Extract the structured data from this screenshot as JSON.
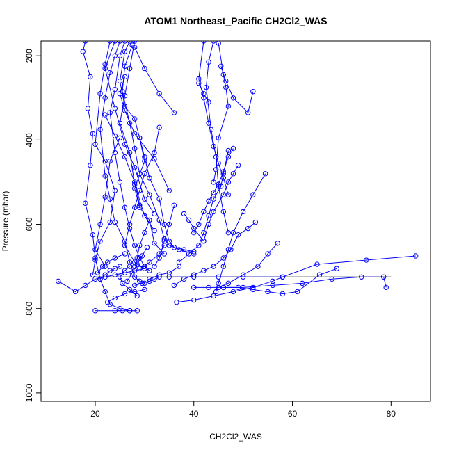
{
  "chart_data": {
    "type": "line",
    "title": "ATOM1 Northeast_Pacific CH2Cl2_WAS",
    "xlabel": "CH2Cl2_WAS",
    "ylabel": "Pressure (mbar)",
    "xlim": [
      9,
      88
    ],
    "ylim": [
      1020,
      165
    ],
    "y_inverted": true,
    "x_ticks": [
      20,
      40,
      60,
      80
    ],
    "y_ticks": [
      200,
      400,
      600,
      800,
      1000
    ],
    "grid": false,
    "colors": {
      "series": "#0000ff",
      "reference": "#000000",
      "axes": "#000000"
    },
    "marker": "open-circle",
    "series": [
      {
        "x": [
          18,
          17.5,
          19,
          18.5,
          19.5,
          19,
          18,
          19.5,
          20,
          21,
          22,
          23,
          25,
          27
        ],
        "y": [
          165,
          190,
          250,
          325,
          385,
          460,
          550,
          625,
          680,
          730,
          760,
          790,
          800,
          805
        ]
      },
      {
        "x": [
          23,
          22,
          21,
          20,
          22,
          24,
          23,
          21,
          20,
          19.5
        ],
        "y": [
          165,
          220,
          290,
          410,
          450,
          520,
          595,
          640,
          685,
          720
        ]
      },
      {
        "x": [
          25,
          24,
          23,
          22,
          21,
          22,
          23,
          24,
          26,
          27,
          28,
          29,
          30
        ],
        "y": [
          165,
          200,
          240,
          300,
          375,
          485,
          540,
          595,
          640,
          690,
          725,
          735,
          740
        ]
      },
      {
        "x": [
          26,
          25,
          24,
          23,
          24,
          25,
          26,
          27,
          28,
          29,
          30,
          31
        ],
        "y": [
          165,
          200,
          280,
          335,
          430,
          500,
          560,
          610,
          650,
          680,
          700,
          710
        ]
      },
      {
        "x": [
          27,
          26,
          25,
          26,
          28,
          29,
          30,
          28,
          29,
          31,
          32,
          34
        ],
        "y": [
          165,
          190,
          260,
          320,
          350,
          395,
          450,
          515,
          560,
          590,
          645,
          670
        ]
      },
      {
        "x": [
          27.5,
          26,
          25.5,
          27,
          28,
          29,
          31,
          33,
          34,
          35,
          37,
          40
        ],
        "y": [
          175,
          225,
          285,
          360,
          420,
          480,
          530,
          590,
          635,
          650,
          660,
          670
        ]
      },
      {
        "x": [
          28,
          27,
          26,
          25,
          27,
          28,
          30,
          32
        ],
        "y": [
          165,
          230,
          295,
          360,
          430,
          505,
          580,
          615
        ]
      },
      {
        "x": [
          24,
          22,
          24,
          26,
          28,
          30,
          32
        ],
        "y": [
          165,
          230,
          325,
          410,
          465,
          540,
          575
        ]
      },
      {
        "x": [
          26,
          25,
          26,
          28,
          32,
          35
        ],
        "y": [
          250,
          290,
          330,
          385,
          445,
          520
        ]
      },
      {
        "x": [
          28,
          30,
          33,
          36
        ],
        "y": [
          180,
          230,
          290,
          335
        ]
      },
      {
        "x": [
          22,
          24,
          26,
          28,
          29
        ],
        "y": [
          340,
          390,
          440,
          500,
          555
        ]
      },
      {
        "x": [
          25,
          23,
          22,
          21,
          20,
          22
        ],
        "y": [
          395,
          450,
          535,
          600,
          660,
          700
        ]
      },
      {
        "x": [
          29,
          30,
          31,
          33,
          34,
          35,
          36,
          38,
          40
        ],
        "y": [
          395,
          440,
          490,
          540,
          600,
          640,
          655,
          660,
          665
        ]
      },
      {
        "x": [
          33,
          32,
          30,
          29,
          28,
          27,
          26,
          28,
          30
        ],
        "y": [
          370,
          430,
          480,
          520,
          560,
          600,
          650,
          690,
          705
        ]
      },
      {
        "x": [
          41,
          42,
          43
        ],
        "y": [
          265,
          290,
          310
        ]
      },
      {
        "x": [
          44,
          43,
          42.5,
          43.5,
          44.5,
          45,
          46,
          47
        ],
        "y": [
          165,
          215,
          275,
          375,
          440,
          510,
          570,
          620
        ]
      },
      {
        "x": [
          45,
          46,
          46.5,
          47,
          45,
          44.5,
          44
        ],
        "y": [
          170,
          245,
          275,
          320,
          395,
          470,
          500
        ]
      },
      {
        "x": [
          45.5,
          46.5,
          48,
          51,
          52
        ],
        "y": [
          225,
          260,
          300,
          335,
          285
        ]
      },
      {
        "x": [
          42,
          41,
          42,
          43,
          44,
          45,
          46,
          47
        ],
        "y": [
          165,
          255,
          300,
          360,
          415,
          455,
          490,
          530
        ]
      },
      {
        "x": [
          48,
          47,
          46,
          45,
          44,
          43,
          42,
          41,
          40
        ],
        "y": [
          420,
          440,
          475,
          505,
          525,
          545,
          570,
          600,
          620
        ]
      },
      {
        "x": [
          47,
          46,
          45.5,
          44,
          43,
          42,
          41,
          39,
          37
        ],
        "y": [
          425,
          480,
          510,
          540,
          580,
          620,
          650,
          670,
          690
        ]
      },
      {
        "x": [
          49,
          48,
          47,
          46,
          44,
          43,
          42
        ],
        "y": [
          460,
          480,
          500,
          530,
          570,
          600,
          640
        ]
      },
      {
        "x": [
          54.5,
          52,
          50,
          48,
          47,
          46,
          45,
          44.5
        ],
        "y": [
          480,
          530,
          570,
          620,
          660,
          700,
          740,
          760
        ]
      },
      {
        "x": [
          38,
          39,
          40,
          42
        ],
        "y": [
          575,
          590,
          610,
          640
        ]
      },
      {
        "x": [
          52.5,
          51,
          49,
          47.5,
          46,
          44,
          42,
          40,
          38,
          36
        ],
        "y": [
          595,
          610,
          625,
          660,
          680,
          700,
          710,
          720,
          730,
          745
        ]
      },
      {
        "x": [
          57,
          55,
          53,
          50,
          47,
          45
        ],
        "y": [
          645,
          670,
          700,
          720,
          740,
          750
        ]
      },
      {
        "x": [
          85,
          75,
          65,
          58,
          50,
          45,
          40,
          35
        ],
        "y": [
          675,
          685,
          695,
          725,
          725,
          725,
          725,
          725
        ]
      },
      {
        "x": [
          69,
          65.5,
          61,
          58,
          55,
          52,
          49,
          46,
          43,
          40
        ],
        "y": [
          705,
          720,
          760,
          765,
          760,
          755,
          750,
          750,
          750,
          750
        ]
      },
      {
        "x": [
          79,
          78.5,
          74,
          68,
          62,
          56,
          50,
          46
        ],
        "y": [
          750,
          725,
          725,
          730,
          740,
          745,
          750,
          750
        ]
      },
      {
        "x": [
          12.5,
          16,
          18,
          20,
          22,
          24,
          26,
          28,
          30
        ],
        "y": [
          735,
          760,
          745,
          730,
          725,
          720,
          715,
          710,
          705
        ]
      },
      {
        "x": [
          20,
          24,
          25.5,
          27,
          28.5
        ],
        "y": [
          805,
          805,
          805,
          805,
          805
        ]
      },
      {
        "x": [
          22.5,
          24,
          26,
          28,
          30
        ],
        "y": [
          785,
          775,
          765,
          760,
          755
        ]
      },
      {
        "x": [
          36.5,
          40,
          44,
          48,
          52,
          56,
          58
        ],
        "y": [
          785,
          780,
          770,
          760,
          750,
          735,
          725
        ]
      },
      {
        "x": [
          25,
          24,
          23,
          22,
          21
        ],
        "y": [
          700,
          705,
          710,
          720,
          730
        ]
      },
      {
        "x": [
          27,
          26,
          25,
          25.5,
          27,
          28.5
        ],
        "y": [
          700,
          710,
          725,
          740,
          755,
          770
        ]
      },
      {
        "x": [
          33,
          32,
          31,
          29.5,
          28
        ],
        "y": [
          725,
          730,
          735,
          740,
          745
        ]
      },
      {
        "x": [
          30.5,
          29.5,
          28.5,
          27.5,
          26.5
        ],
        "y": [
          655,
          675,
          695,
          715,
          735
        ]
      },
      {
        "x": [
          34,
          33,
          31,
          30,
          29
        ],
        "y": [
          650,
          670,
          690,
          700,
          705
        ]
      },
      {
        "x": [
          37,
          35,
          33,
          31
        ],
        "y": [
          700,
          715,
          720,
          730
        ]
      },
      {
        "x": [
          36,
          35,
          34,
          33,
          32
        ],
        "y": [
          555,
          600,
          640,
          680,
          700
        ]
      },
      {
        "x": [
          31,
          30,
          29,
          28.5,
          28
        ],
        "y": [
          590,
          620,
          650,
          680,
          700
        ]
      },
      {
        "x": [
          20.5,
          21.5,
          22.5,
          24,
          26
        ],
        "y": [
          715,
          700,
          690,
          680,
          670
        ]
      }
    ],
    "reference_line": {
      "x": [
        20,
        80
      ],
      "y": [
        725,
        725
      ]
    }
  }
}
